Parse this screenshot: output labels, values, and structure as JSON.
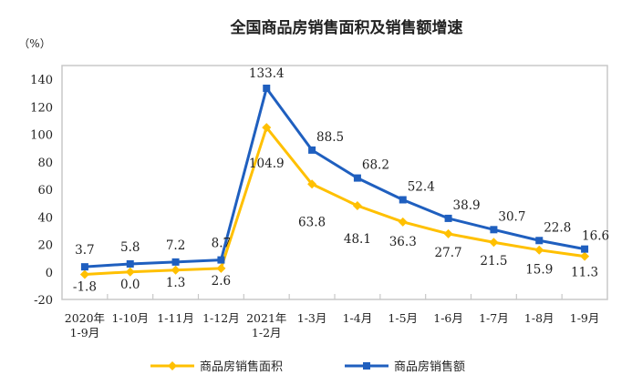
{
  "chart_data": {
    "type": "line",
    "title": "全国商品房销售面积及销售额增速",
    "ylabel": "（%）",
    "xlabel": "",
    "ylim": [
      -20,
      140
    ],
    "yticks": [
      -20,
      0,
      20,
      40,
      60,
      80,
      100,
      120,
      140
    ],
    "categories": [
      [
        "2020年",
        "1-9月"
      ],
      [
        "1-10月"
      ],
      [
        "1-11月"
      ],
      [
        "1-12月"
      ],
      [
        "2021年",
        "1-2月"
      ],
      [
        "1-3月"
      ],
      [
        "1-4月"
      ],
      [
        "1-5月"
      ],
      [
        "1-6月"
      ],
      [
        "1-7月"
      ],
      [
        "1-8月"
      ],
      [
        "1-9月"
      ]
    ],
    "series": [
      {
        "name": "商品房销售面积",
        "color": "#FFC000",
        "marker": "diamond",
        "values": [
          -1.8,
          0.0,
          1.3,
          2.6,
          104.9,
          63.8,
          48.1,
          36.3,
          27.7,
          21.5,
          15.9,
          11.3
        ],
        "labels": [
          "-1.8",
          "0.0",
          "1.3",
          "2.6",
          "104.9",
          "63.8",
          "48.1",
          "36.3",
          "27.7",
          "21.5",
          "15.9",
          "11.3"
        ]
      },
      {
        "name": "商品房销售额",
        "color": "#1F5FBF",
        "marker": "square",
        "values": [
          3.7,
          5.8,
          7.2,
          8.7,
          133.4,
          88.5,
          68.2,
          52.4,
          38.9,
          30.7,
          22.8,
          16.6
        ],
        "labels": [
          "3.7",
          "5.8",
          "7.2",
          "8.7",
          "133.4",
          "88.5",
          "68.2",
          "52.4",
          "38.9",
          "30.7",
          "22.8",
          "16.6"
        ]
      }
    ],
    "legend": "bottom",
    "grid": false
  }
}
